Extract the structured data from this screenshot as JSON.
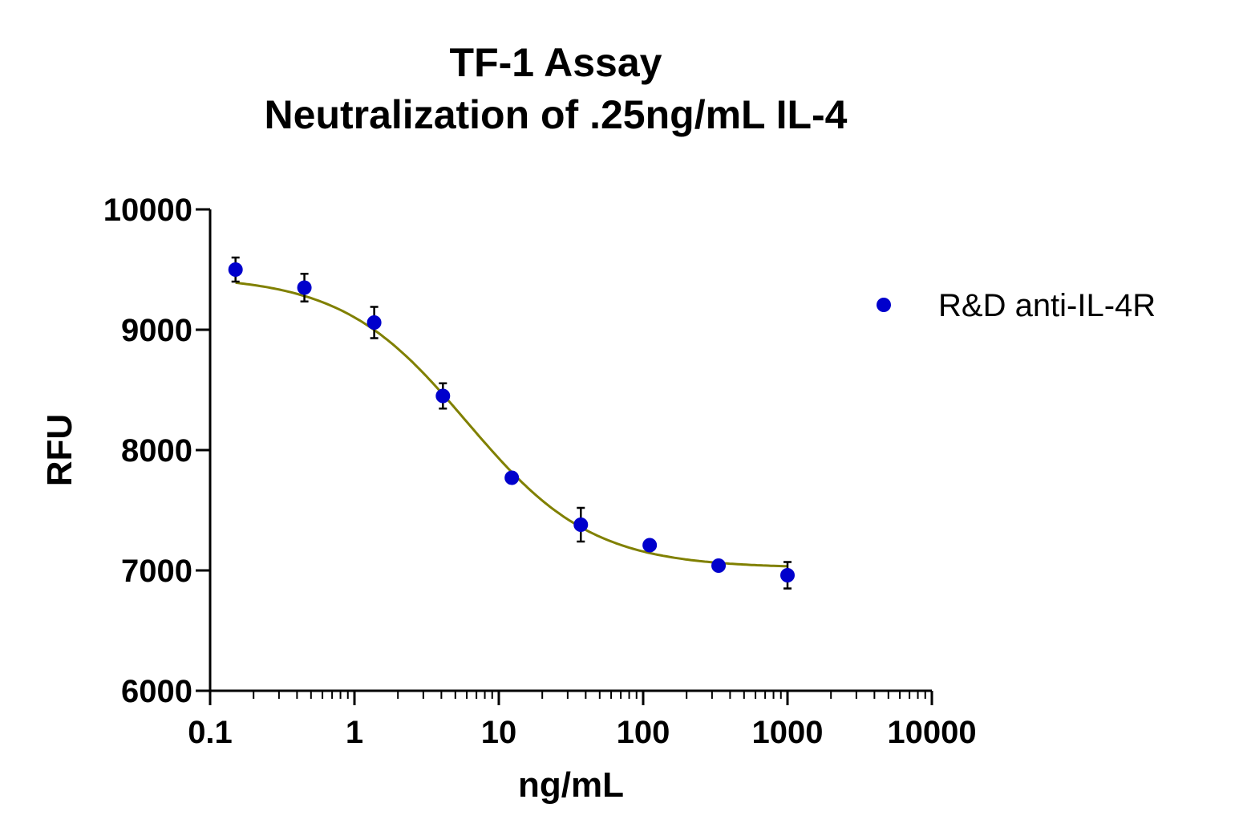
{
  "chart_data": {
    "type": "scatter",
    "title": "TF-1 Assay",
    "subtitle": "Neutralization of .25ng/mL IL-4",
    "xlabel": "ng/mL",
    "ylabel": "RFU",
    "xscale": "log",
    "xlim": [
      0.1,
      10000
    ],
    "ylim": [
      6000,
      10000
    ],
    "x_ticks": [
      0.1,
      1,
      10,
      100,
      1000,
      10000
    ],
    "x_tick_labels": [
      "0.1",
      "1",
      "10",
      "100",
      "1000",
      "10000"
    ],
    "y_ticks": [
      6000,
      7000,
      8000,
      9000,
      10000
    ],
    "y_tick_labels": [
      "6000",
      "7000",
      "8000",
      "9000",
      "10000"
    ],
    "grid": false,
    "legend_position": "right",
    "series": [
      {
        "name": "R&D anti-IL-4R",
        "marker_color": "#0000CC",
        "x": [
          0.15,
          0.45,
          1.37,
          4.1,
          12.3,
          37,
          111,
          333,
          1000
        ],
        "y": [
          9500,
          9350,
          9060,
          8450,
          7770,
          7380,
          7210,
          7040,
          6960
        ],
        "error": [
          100,
          115,
          130,
          105,
          30,
          140,
          35,
          35,
          110
        ]
      }
    ],
    "fit_curve": {
      "model": "4PL",
      "color": "#808000",
      "top": 9450,
      "bottom": 7020,
      "ec50": 6,
      "hill": 1.0
    }
  }
}
